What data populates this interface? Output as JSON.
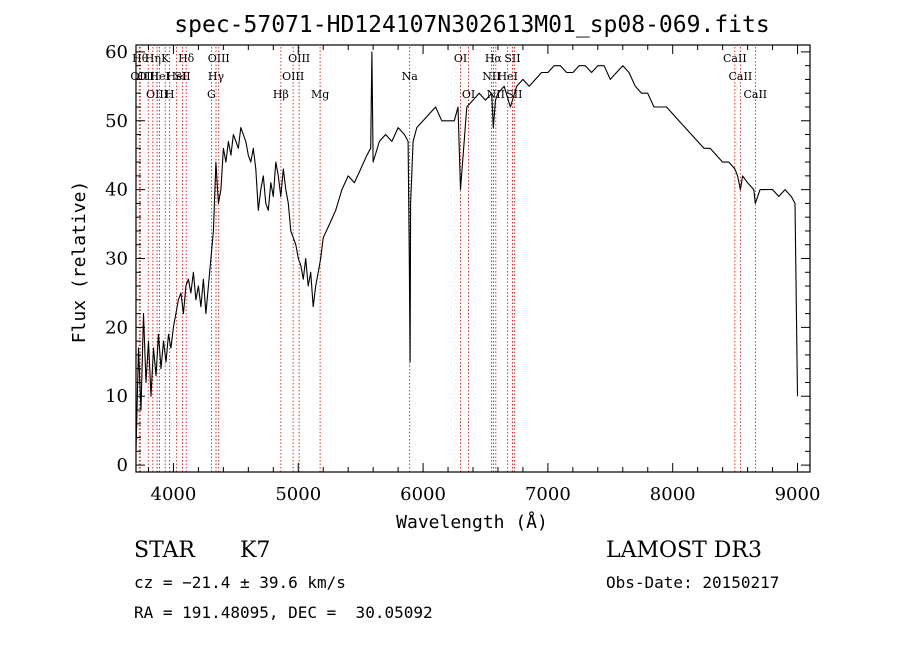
{
  "chart_data": {
    "type": "line",
    "title": "spec-57071-HD124107N302613M01_sp08-069.fits",
    "xlabel": "Wavelength (Å)",
    "ylabel": "Flux (relative)",
    "xlim": [
      3700,
      9100
    ],
    "ylim": [
      -1,
      61
    ],
    "x_ticks": [
      4000,
      5000,
      6000,
      7000,
      8000,
      9000
    ],
    "y_ticks": [
      0,
      10,
      20,
      30,
      40,
      50,
      60
    ],
    "grid": false,
    "series": [
      {
        "color": "#000000",
        "x": [
          3700,
          3720,
          3740,
          3760,
          3780,
          3800,
          3820,
          3840,
          3860,
          3880,
          3900,
          3920,
          3940,
          3960,
          3980,
          4000,
          4020,
          4040,
          4060,
          4080,
          4100,
          4120,
          4140,
          4160,
          4180,
          4200,
          4220,
          4240,
          4260,
          4280,
          4300,
          4320,
          4340,
          4360,
          4380,
          4400,
          4420,
          4440,
          4460,
          4480,
          4500,
          4520,
          4540,
          4560,
          4580,
          4600,
          4620,
          4640,
          4660,
          4680,
          4700,
          4720,
          4740,
          4760,
          4780,
          4800,
          4820,
          4840,
          4860,
          4880,
          4900,
          4920,
          4940,
          4960,
          4980,
          5000,
          5020,
          5040,
          5060,
          5080,
          5100,
          5120,
          5140,
          5160,
          5180,
          5200,
          5250,
          5300,
          5350,
          5400,
          5450,
          5500,
          5550,
          5580,
          5590,
          5600,
          5650,
          5700,
          5750,
          5800,
          5850,
          5880,
          5890,
          5896,
          5900,
          5920,
          5950,
          6000,
          6050,
          6100,
          6150,
          6200,
          6250,
          6280,
          6300,
          6350,
          6400,
          6450,
          6500,
          6550,
          6563,
          6580,
          6600,
          6650,
          6700,
          6750,
          6800,
          6850,
          6900,
          6950,
          7000,
          7050,
          7100,
          7150,
          7200,
          7250,
          7300,
          7350,
          7400,
          7450,
          7500,
          7550,
          7600,
          7650,
          7700,
          7750,
          7800,
          7850,
          7900,
          7950,
          8000,
          8050,
          8100,
          8150,
          8200,
          8250,
          8300,
          8350,
          8400,
          8450,
          8498,
          8520,
          8542,
          8560,
          8600,
          8650,
          8662,
          8700,
          8750,
          8800,
          8850,
          8900,
          8950,
          8980,
          9000
        ],
        "y": [
          2,
          17,
          8,
          22,
          12,
          18,
          10,
          17,
          13,
          19,
          14,
          18,
          15,
          19,
          17,
          20,
          22,
          24,
          25,
          22,
          26,
          27,
          25,
          28,
          24,
          26,
          23,
          27,
          22,
          26,
          30,
          34,
          44,
          38,
          40,
          46,
          44,
          47,
          45,
          48,
          47,
          46,
          49,
          48,
          47,
          45,
          44,
          46,
          43,
          37,
          40,
          42,
          38,
          37,
          41,
          39,
          44,
          42,
          39,
          43,
          40,
          38,
          34,
          33,
          32,
          30,
          29,
          27,
          30,
          26,
          28,
          23,
          26,
          28,
          30,
          33,
          35,
          37,
          40,
          42,
          41,
          43,
          45,
          46,
          60,
          44,
          47,
          48,
          47,
          49,
          48,
          47,
          30,
          15,
          38,
          47,
          49,
          50,
          51,
          52,
          50,
          50,
          50,
          52,
          40,
          52,
          53,
          54,
          53,
          54,
          49,
          53,
          54,
          55,
          52,
          55,
          56,
          55,
          56,
          57,
          57,
          58,
          58,
          57,
          57,
          58,
          58,
          57,
          58,
          58,
          56,
          57,
          58,
          57,
          55,
          54,
          54,
          52,
          52,
          52,
          51,
          50,
          49,
          48,
          47,
          46,
          46,
          45,
          44,
          44,
          43,
          42,
          40,
          42,
          41,
          40,
          38,
          40,
          40,
          40,
          39,
          40,
          39,
          38,
          10
        ]
      }
    ],
    "line_labels": [
      {
        "wavelength": 3726,
        "row": 1,
        "label": "OII"
      },
      {
        "wavelength": 3734,
        "row": 0,
        "label": "Hθ"
      },
      {
        "wavelength": 3798,
        "row": 1,
        "label": "OIII"
      },
      {
        "wavelength": 3835,
        "row": 0,
        "label": "Hη"
      },
      {
        "wavelength": 3869,
        "row": 2,
        "label": "OIII"
      },
      {
        "wavelength": 3889,
        "row": 1,
        "label": "HeI"
      },
      {
        "wavelength": 3934,
        "row": 0,
        "label": "K"
      },
      {
        "wavelength": 3970,
        "row": 2,
        "label": "H"
      },
      {
        "wavelength": 4026,
        "row": 1,
        "label": "HeI"
      },
      {
        "wavelength": 4072,
        "row": 1,
        "label": "SII"
      },
      {
        "wavelength": 4102,
        "row": 0,
        "label": "Hδ"
      },
      {
        "wavelength": 4304,
        "row": 2,
        "label": "G"
      },
      {
        "wavelength": 4341,
        "row": 1,
        "label": "Hγ"
      },
      {
        "wavelength": 4363,
        "row": 0,
        "label": "OIII"
      },
      {
        "wavelength": 4861,
        "row": 2,
        "label": "Hβ"
      },
      {
        "wavelength": 4959,
        "row": 1,
        "label": "OIII"
      },
      {
        "wavelength": 5007,
        "row": 0,
        "label": "OIII"
      },
      {
        "wavelength": 5175,
        "row": 2,
        "label": "Mg"
      },
      {
        "wavelength": 5893,
        "row": 1,
        "label": "Na"
      },
      {
        "wavelength": 6300,
        "row": 0,
        "label": "OI"
      },
      {
        "wavelength": 6364,
        "row": 2,
        "label": "OI"
      },
      {
        "wavelength": 6548,
        "row": 1,
        "label": "NII"
      },
      {
        "wavelength": 6563,
        "row": 0,
        "label": "Hα"
      },
      {
        "wavelength": 6583,
        "row": 2,
        "label": "NII"
      },
      {
        "wavelength": 6678,
        "row": 1,
        "label": "HeI"
      },
      {
        "wavelength": 6716,
        "row": 0,
        "label": "SII"
      },
      {
        "wavelength": 6731,
        "row": 2,
        "label": "SII"
      },
      {
        "wavelength": 8498,
        "row": 0,
        "label": "CaII"
      },
      {
        "wavelength": 8542,
        "row": 1,
        "label": "CaII"
      },
      {
        "wavelength": 8662,
        "row": 2,
        "label": "CaII"
      }
    ],
    "line_marker_color": "#cc0000"
  },
  "info": {
    "object_class": "STAR",
    "subclass": "K7",
    "survey": "LAMOST DR3",
    "cz": "cz = −21.4 ± 39.6 km/s",
    "obs_date": "Obs-Date: 20150217",
    "coords": "RA = 191.48095, DEC =  30.05092"
  }
}
